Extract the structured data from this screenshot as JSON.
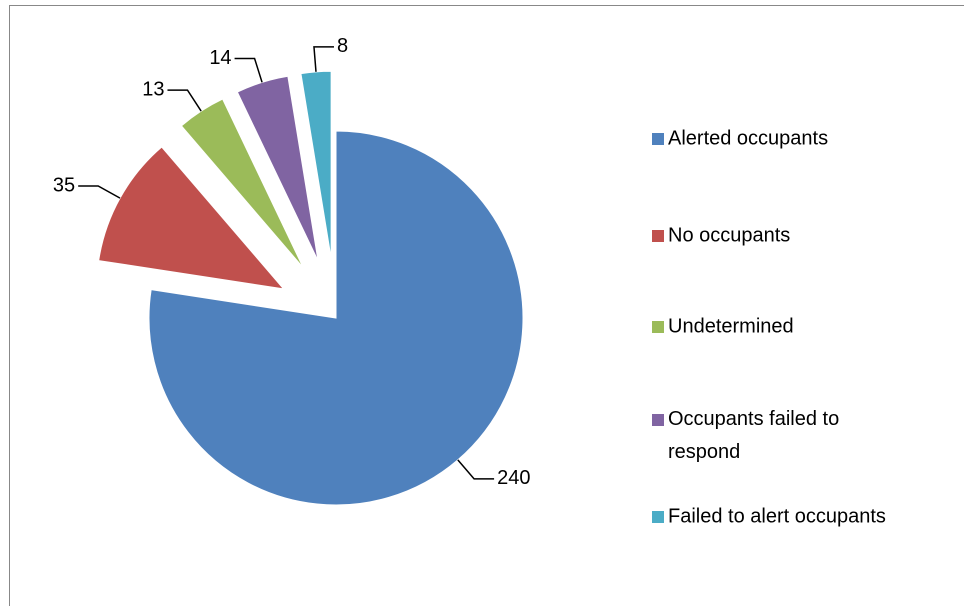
{
  "chart_data": {
    "type": "pie",
    "categories": [
      "Alerted occupants",
      "No occupants",
      "Undetermined",
      "Occupants failed to respond",
      "Failed to alert occupants"
    ],
    "values": [
      240,
      35,
      13,
      14,
      8
    ],
    "colors": [
      "#4f81bd",
      "#c0504d",
      "#9bbb59",
      "#8064a2",
      "#4bacc6"
    ],
    "legend": "right"
  }
}
